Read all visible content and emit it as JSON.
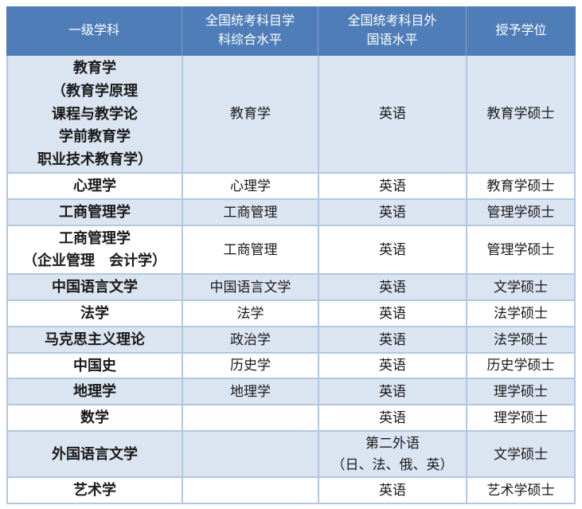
{
  "colors": {
    "header_bg": "#4e7db8",
    "alt_row_bg": "#dbe4f1",
    "border": "#b3c7e1",
    "text": "#1a1a1a",
    "header_text": "#ffffff",
    "page_bg": "#ffffff"
  },
  "table": {
    "columns": [
      {
        "key": "discipline",
        "label": "一级学科"
      },
      {
        "key": "subject_level",
        "label": "全国统考科目学\n科综合水平"
      },
      {
        "key": "foreign_language_level",
        "label": "全国统考科目外\n国语水平"
      },
      {
        "key": "degree",
        "label": "授予学位"
      }
    ],
    "rows": [
      {
        "discipline": "教育学\n（教育学原理\n课程与教学论\n学前教育学\n职业技术教育学）",
        "subject_level": "教育学",
        "foreign_language_level": "英语",
        "degree": "教育学硕士"
      },
      {
        "discipline": "心理学",
        "subject_level": "心理学",
        "foreign_language_level": "英语",
        "degree": "教育学硕士"
      },
      {
        "discipline": "工商管理学",
        "subject_level": "工商管理",
        "foreign_language_level": "英语",
        "degree": "管理学硕士"
      },
      {
        "discipline": "工商管理学\n（企业管理　会计学）",
        "subject_level": "工商管理",
        "foreign_language_level": "英语",
        "degree": "管理学硕士"
      },
      {
        "discipline": "中国语言文学",
        "subject_level": "中国语言文学",
        "foreign_language_level": "英语",
        "degree": "文学硕士"
      },
      {
        "discipline": "法学",
        "subject_level": "法学",
        "foreign_language_level": "英语",
        "degree": "法学硕士"
      },
      {
        "discipline": "马克思主义理论",
        "subject_level": "政治学",
        "foreign_language_level": "英语",
        "degree": "法学硕士"
      },
      {
        "discipline": "中国史",
        "subject_level": "历史学",
        "foreign_language_level": "英语",
        "degree": "历史学硕士"
      },
      {
        "discipline": "地理学",
        "subject_level": "地理学",
        "foreign_language_level": "英语",
        "degree": "理学硕士"
      },
      {
        "discipline": "数学",
        "subject_level": "",
        "foreign_language_level": "英语",
        "degree": "理学硕士"
      },
      {
        "discipline": "外国语言文学",
        "subject_level": "",
        "foreign_language_level": "第二外语\n（日、法、俄、英）",
        "degree": "文学硕士"
      },
      {
        "discipline": "艺术学",
        "subject_level": "",
        "foreign_language_level": "英语",
        "degree": "艺术学硕士"
      }
    ]
  }
}
